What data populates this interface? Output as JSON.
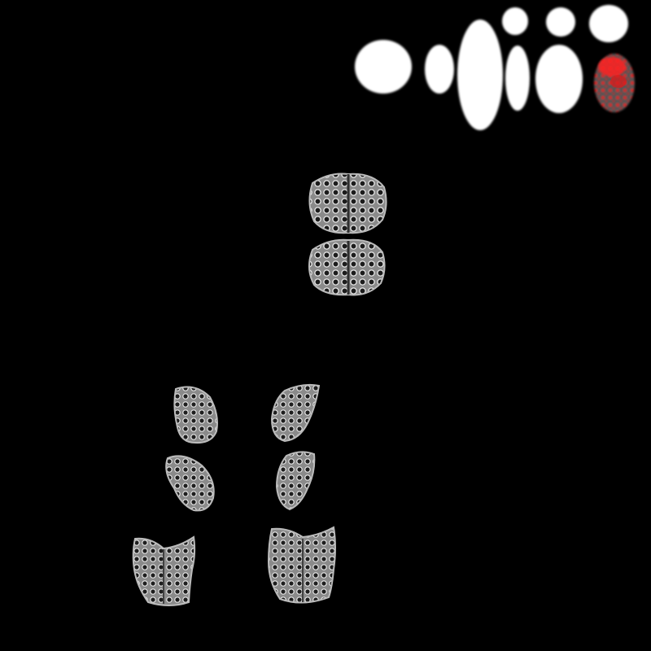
{
  "image": {
    "background": "#000000",
    "blob_color": "#ffffff",
    "highlight_color": "#ff1a1a",
    "tissue_fill": "#7a7a7a",
    "cell_fill": "#1c1c1c",
    "cell_wall": "#e6e6e6"
  }
}
